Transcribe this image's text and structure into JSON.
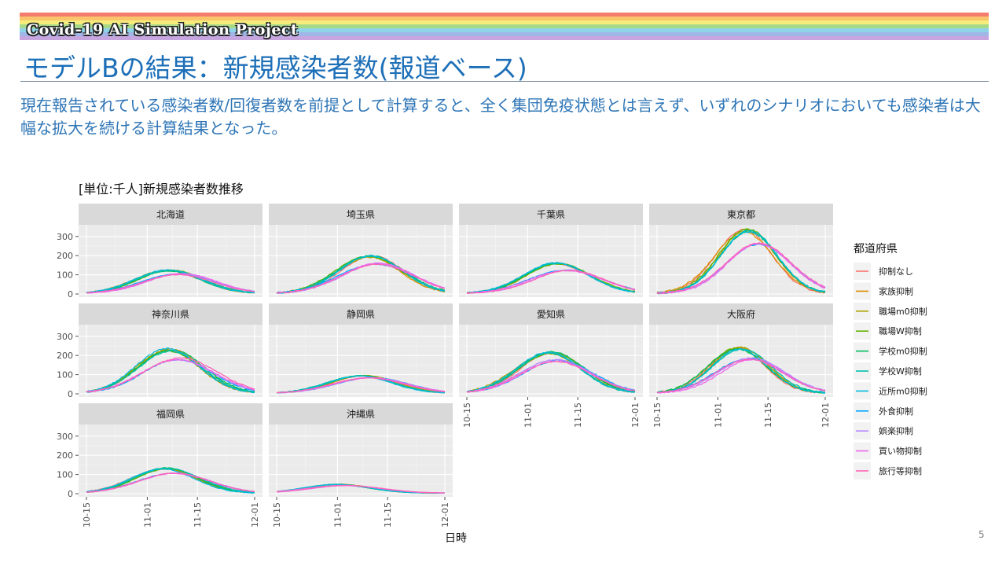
{
  "slide": {
    "banner_text": "Covid-19 AI Simulation Project",
    "title": "モデルBの結果：新規感染者数(報道ベース)",
    "summary": "現在報告されている感染者数/回復者数を前提として計算すると、全く集団免疫状態とは言えず、いずれのシナリオにおいても感染者は大幅な拡大を続ける計算結果となった。",
    "page_number": "5",
    "rainbow_colors": [
      "#f47c6c",
      "#f9c46b",
      "#f5ec7c",
      "#a7d989",
      "#8fd3e8",
      "#9fb6e6",
      "#c7a6e0"
    ],
    "title_color": "#1d6fb8",
    "summary_color": "#2e75b6"
  },
  "chart_data": {
    "type": "line",
    "title": "[単位:千人]新規感染者数推移",
    "xlabel": "日時",
    "ylabel": "",
    "x_ticks": [
      "10-15",
      "11-01",
      "11-15",
      "12-01"
    ],
    "x_range": [
      "2020-10-15",
      "2020-12-01"
    ],
    "ylim": [
      0,
      340
    ],
    "y_ticks": [
      0,
      100,
      200,
      300
    ],
    "grid": true,
    "legend_position": "right",
    "legend_title": "都道府県",
    "series": [
      {
        "name": "抑制なし",
        "color": "#f8766d",
        "group": "A"
      },
      {
        "name": "家族抑制",
        "color": "#db8e00",
        "group": "A"
      },
      {
        "name": "職場m0抑制",
        "color": "#aea200",
        "group": "A"
      },
      {
        "name": "職場W抑制",
        "color": "#64b200",
        "group": "A"
      },
      {
        "name": "学校m0抑制",
        "color": "#00bd5c",
        "group": "A"
      },
      {
        "name": "学校W抑制",
        "color": "#00c1a7",
        "group": "A"
      },
      {
        "name": "近所m0抑制",
        "color": "#00bade",
        "group": "A"
      },
      {
        "name": "外食抑制",
        "color": "#00a6ff",
        "group": "B"
      },
      {
        "name": "娯楽抑制",
        "color": "#b385ff",
        "group": "B"
      },
      {
        "name": "買い物抑制",
        "color": "#ef67eb",
        "group": "B"
      },
      {
        "name": "旅行等抑制",
        "color": "#ff63b6",
        "group": "B"
      }
    ],
    "panels": [
      {
        "name": "北海道",
        "peak_a": 120,
        "peak_day_a": "2020-11-07",
        "width_a": 9,
        "peak_b": 100,
        "peak_day_b": "2020-11-10",
        "width_b": 10
      },
      {
        "name": "埼玉県",
        "peak_a": 192,
        "peak_day_a": "2020-11-10",
        "width_a": 9,
        "peak_b": 155,
        "peak_day_b": "2020-11-12",
        "width_b": 10
      },
      {
        "name": "千葉県",
        "peak_a": 155,
        "peak_day_a": "2020-11-09",
        "width_a": 9,
        "peak_b": 120,
        "peak_day_b": "2020-11-12",
        "width_b": 10
      },
      {
        "name": "東京都",
        "peak_a": 330,
        "peak_day_a": "2020-11-09",
        "width_a": 8,
        "peak_b": 260,
        "peak_day_b": "2020-11-13",
        "width_b": 9
      },
      {
        "name": "神奈川県",
        "peak_a": 225,
        "peak_day_a": "2020-11-07",
        "width_a": 9,
        "peak_b": 180,
        "peak_day_b": "2020-11-10",
        "width_b": 10
      },
      {
        "name": "静岡県",
        "peak_a": 90,
        "peak_day_a": "2020-11-08",
        "width_a": 9,
        "peak_b": 80,
        "peak_day_b": "2020-11-10",
        "width_b": 10
      },
      {
        "name": "愛知県",
        "peak_a": 212,
        "peak_day_a": "2020-11-07",
        "width_a": 9,
        "peak_b": 170,
        "peak_day_b": "2020-11-09",
        "width_b": 10
      },
      {
        "name": "大阪府",
        "peak_a": 232,
        "peak_day_a": "2020-11-07",
        "width_a": 8,
        "peak_b": 182,
        "peak_day_b": "2020-11-10",
        "width_b": 9
      },
      {
        "name": "福岡県",
        "peak_a": 130,
        "peak_day_a": "2020-11-06",
        "width_a": 9,
        "peak_b": 105,
        "peak_day_b": "2020-11-08",
        "width_b": 10
      },
      {
        "name": "沖縄県",
        "peak_a": 45,
        "peak_day_a": "2020-11-01",
        "width_a": 9,
        "peak_b": 40,
        "peak_day_b": "2020-11-03",
        "width_b": 10
      }
    ]
  }
}
